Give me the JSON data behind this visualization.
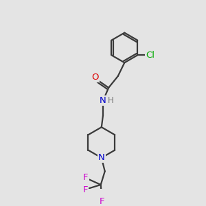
{
  "bg_color": "#e4e4e4",
  "bond_color": "#3a3a3a",
  "atom_colors": {
    "O": "#dd0000",
    "N": "#0000cc",
    "Cl": "#00aa00",
    "F": "#cc00cc",
    "H": "#777777",
    "C": "#3a3a3a"
  },
  "bond_width": 1.6,
  "font_size_atom": 9.5
}
